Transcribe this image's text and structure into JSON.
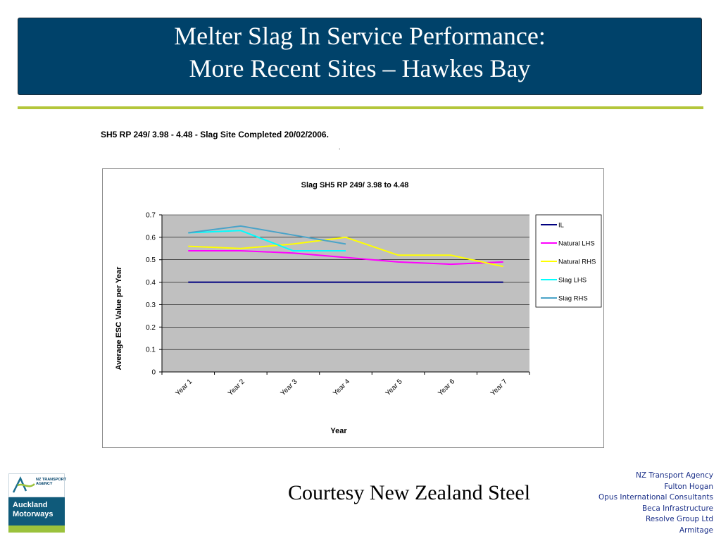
{
  "slide": {
    "title_line1": "Melter Slag In Service Performance:",
    "title_line2": "More Recent Sites – Hawkes Bay",
    "subtitle": "SH5 RP 249/ 3.98 - 4.48 - Slag Site Completed 20/02/2006.",
    "dot": ".",
    "courtesy": "Courtesy New Zealand Steel",
    "partners": [
      "NZ Transport Agency",
      "Fulton Hogan",
      "Opus International Consultants",
      "Beca Infrastructure",
      "Resolve Group Ltd",
      "Armitage"
    ],
    "logo": {
      "agency_line1": "NZ TRANSPORT",
      "agency_line2": "AGENCY",
      "name_line1": "Auckland",
      "name_line2": "Motorways"
    },
    "colors": {
      "banner": "#00426a",
      "accent_rule": "#b4c63a",
      "partners_text": "#1a2f88",
      "plot_background": "#c0c0c0"
    }
  },
  "chart_data": {
    "type": "line",
    "title": "Slag SH5 RP 249/ 3.98 to 4.48",
    "xlabel": "Year",
    "ylabel": "Average ESC  Value per Year",
    "categories": [
      "Year 1",
      "Year 2",
      "Year 3",
      "Year 4",
      "Year 5",
      "Year 6",
      "Year 7"
    ],
    "ylim": [
      0,
      0.7
    ],
    "yticks": [
      0,
      0.1,
      0.2,
      0.3,
      0.4,
      0.5,
      0.6,
      0.7
    ],
    "ytick_labels": [
      "0",
      "0.1",
      "0.2",
      "0.3",
      "0.4",
      "0.5",
      "0.6",
      "0.7"
    ],
    "grid": true,
    "legend_position": "right",
    "series": [
      {
        "name": "IL",
        "color": "#000080",
        "values": [
          0.4,
          0.4,
          0.4,
          0.4,
          0.4,
          0.4,
          0.4
        ]
      },
      {
        "name": "Natural LHS",
        "color": "#ff00ff",
        "values": [
          0.54,
          0.54,
          0.53,
          0.51,
          0.49,
          0.48,
          0.49
        ]
      },
      {
        "name": "Natural RHS",
        "color": "#ffff00",
        "values": [
          0.56,
          0.55,
          0.57,
          0.6,
          0.52,
          0.52,
          0.47
        ]
      },
      {
        "name": "Slag LHS",
        "color": "#00ffff",
        "values": [
          0.62,
          0.63,
          0.54,
          0.54,
          null,
          null,
          null
        ]
      },
      {
        "name": "Slag RHS",
        "color": "#4aa3c8",
        "values": [
          0.62,
          0.65,
          0.61,
          0.57,
          null,
          null,
          null
        ]
      }
    ]
  }
}
